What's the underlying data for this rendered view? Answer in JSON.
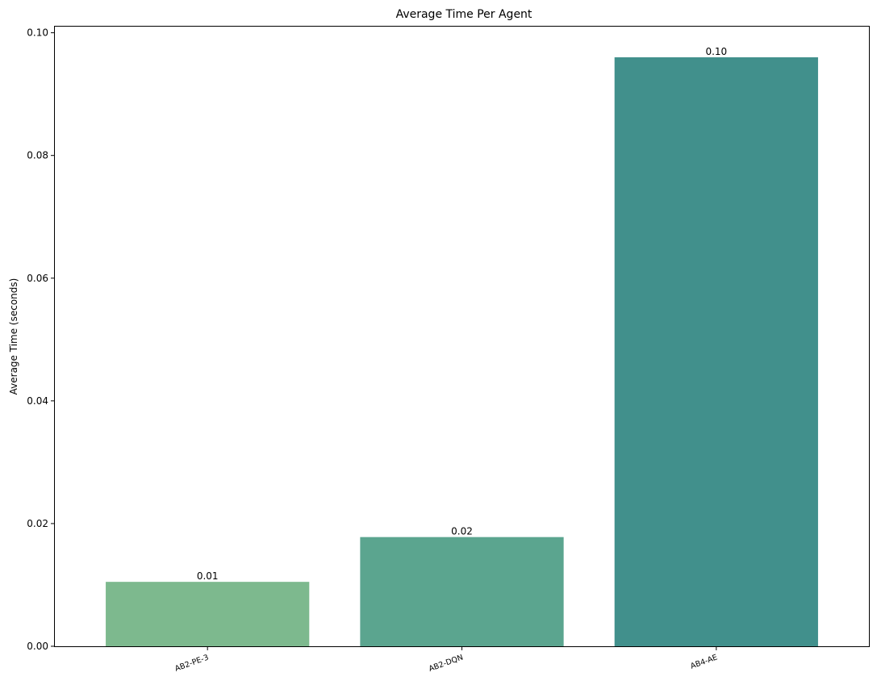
{
  "chart_data": {
    "type": "bar",
    "title": "Average Time Per Agent",
    "xlabel": "",
    "ylabel": "Average Time (seconds)",
    "categories": [
      "AB2-PE-3",
      "AB2-DQN",
      "AB4-AE"
    ],
    "values": [
      0.0105,
      0.0178,
      0.096
    ],
    "value_labels": [
      "0.01",
      "0.02",
      "0.10"
    ],
    "colors": [
      "#7db98e",
      "#5ba58f",
      "#41908c"
    ],
    "ylim": [
      0,
      0.101
    ],
    "yticks": [
      0.0,
      0.02,
      0.04,
      0.06,
      0.08,
      0.1
    ],
    "ytick_labels": [
      "0.00",
      "0.02",
      "0.04",
      "0.06",
      "0.08",
      "0.10"
    ],
    "grid": false,
    "legend": "none"
  }
}
